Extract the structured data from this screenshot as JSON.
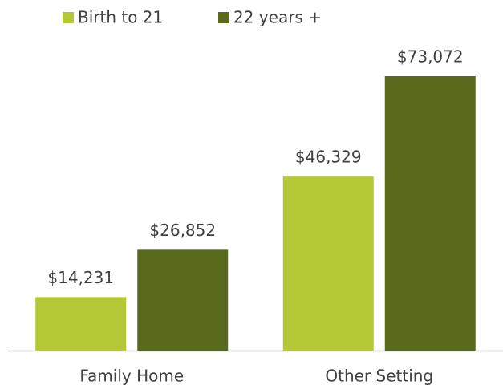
{
  "chart_data": {
    "type": "bar",
    "categories": [
      "Family Home",
      "Other Setting"
    ],
    "series": [
      {
        "name": "Birth to 21",
        "color": "#b3c834",
        "values": [
          14231,
          46329
        ],
        "value_labels": [
          "$14,231",
          "$46,329"
        ]
      },
      {
        "name": "22 years +",
        "color": "#5a6a1c",
        "values": [
          26852,
          73072
        ],
        "value_labels": [
          "$26,852",
          "$73,072"
        ]
      }
    ],
    "legend": "top"
  }
}
